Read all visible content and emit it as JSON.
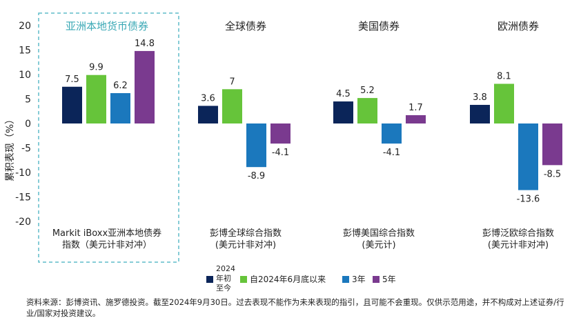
{
  "colors": {
    "ytd": "#0b2559",
    "since_jun": "#66c43a",
    "y3": "#1b78bd",
    "y5": "#7a3a8f",
    "highlight_border": "#5fbcc8",
    "highlight_text": "#3aa8b5"
  },
  "chart_data": {
    "type": "bar",
    "ylabel": "累积表现（%）",
    "ylim": [
      -20,
      20
    ],
    "yticks": [
      20,
      15,
      10,
      5,
      0,
      -5,
      -10,
      -15,
      -20
    ],
    "highlighted_group": "亚洲本地货币债券",
    "categories": [
      "亚洲本地货币债券",
      "全球债券",
      "美国债券",
      "欧洲债券"
    ],
    "index_names": [
      [
        "Markit iBoxx亚洲本地债券",
        "指数（美元计非对冲）"
      ],
      [
        "彭博全球综合指数",
        "(美元计非对冲)"
      ],
      [
        "彭博美国综合指数",
        "(美元计)"
      ],
      [
        "彭博泛欧综合指数",
        "(美元计非对冲)"
      ]
    ],
    "series": [
      {
        "name": "2024年初至今",
        "values": [
          7.5,
          3.6,
          4.5,
          3.8
        ],
        "labels": [
          "7.5",
          "3.6",
          "4.5",
          "3.8"
        ]
      },
      {
        "name": "自2024年6月底以来",
        "values": [
          9.9,
          7,
          5.2,
          8.1
        ],
        "labels": [
          "9.9",
          "7",
          "5.2",
          "8.1"
        ]
      },
      {
        "name": "3年",
        "values": [
          6.2,
          -8.9,
          -4.1,
          -13.6
        ],
        "labels": [
          "6.2",
          "-8.9",
          "-4.1",
          "-13.6"
        ]
      },
      {
        "name": "5年",
        "values": [
          14.8,
          -4.1,
          1.7,
          -8.5
        ],
        "labels": [
          "14.8",
          "-4.1",
          "1.7",
          "-8.5"
        ]
      }
    ],
    "legend": {
      "placement": "bottom",
      "ytd_lines": [
        "2024",
        "年初",
        "至今"
      ],
      "since_jun": "自2024年6月底以来",
      "y3": "3年",
      "y5": "5年"
    }
  },
  "source_text": "资料来源：彭博资讯、施罗德投资。截至2024年9月30日。过去表现不能作为未来表现的指引，且可能不会重现。仅供示范用途，并不构成对上述证券/行业/国家对投资建议。"
}
